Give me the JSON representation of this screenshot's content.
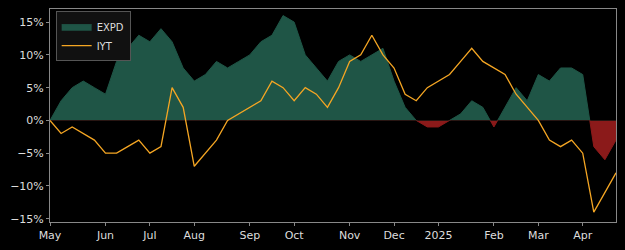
{
  "chart_data": {
    "type": "area",
    "categories": [
      "May",
      null,
      null,
      null,
      null,
      "Jun",
      null,
      null,
      null,
      "Jul",
      null,
      null,
      null,
      "Aug",
      null,
      null,
      null,
      null,
      "Sep",
      null,
      null,
      null,
      "Oct",
      null,
      null,
      null,
      null,
      "Nov",
      null,
      null,
      null,
      "Dec",
      null,
      null,
      null,
      "2025",
      null,
      null,
      null,
      null,
      "Feb",
      null,
      null,
      null,
      "Mar",
      null,
      null,
      null,
      "Apr",
      null,
      null,
      null
    ],
    "series": [
      {
        "name": "EXPD",
        "type": "area",
        "color": "#1f5546",
        "values": [
          0,
          3,
          5,
          6,
          5,
          4,
          9,
          11,
          13,
          12,
          14,
          12,
          8,
          6,
          7,
          9,
          8,
          9,
          10,
          12,
          13,
          16,
          15,
          10,
          8,
          6,
          9,
          10,
          9,
          10,
          11,
          6,
          2,
          0,
          -1,
          -1,
          0,
          1,
          3,
          2,
          -1,
          2,
          5,
          3,
          7,
          6,
          8,
          8,
          7,
          -4,
          -6,
          -3
        ]
      },
      {
        "name": "IYT",
        "type": "line",
        "color": "#f5a623",
        "values": [
          0,
          -2,
          -1,
          -2,
          -3,
          -5,
          -5,
          -4,
          -3,
          -5,
          -4,
          5,
          2,
          -7,
          -5,
          -3,
          0,
          1,
          2,
          3,
          6,
          5,
          3,
          5,
          4,
          2,
          5,
          9,
          10,
          13,
          10,
          8,
          4,
          3,
          5,
          6,
          7,
          9,
          11,
          9,
          8,
          7,
          4,
          2,
          0,
          -3,
          -4,
          -3,
          -5,
          -14,
          -11,
          -8
        ]
      }
    ],
    "ylim": [
      -15.5,
      17
    ],
    "yticks": [
      {
        "value": -15,
        "label": "−15%"
      },
      {
        "value": -10,
        "label": "−10%"
      },
      {
        "value": -5,
        "label": "−5%"
      },
      {
        "value": 0,
        "label": "0%"
      },
      {
        "value": 5,
        "label": "5%"
      },
      {
        "value": 10,
        "label": "10%"
      },
      {
        "value": 15,
        "label": "15%"
      }
    ],
    "legend": "upper left",
    "grid": false
  }
}
